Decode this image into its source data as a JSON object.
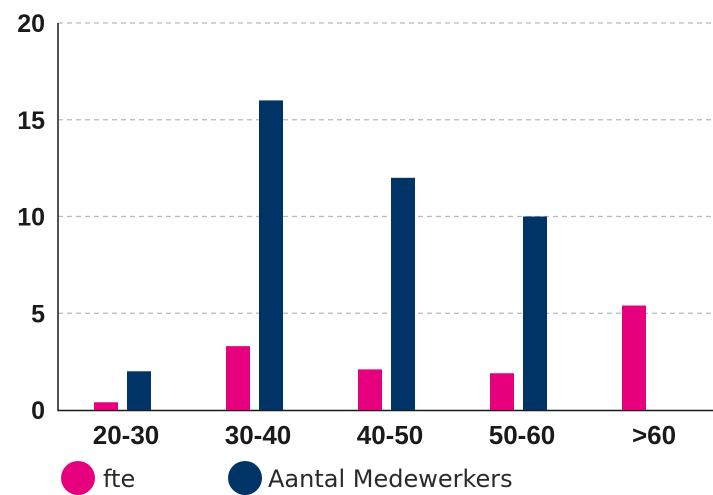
{
  "chart_data": {
    "type": "bar",
    "categories": [
      "20-30",
      "30-40",
      "40-50",
      "50-60",
      ">60"
    ],
    "series": [
      {
        "name": "fte",
        "color": "#e6007e",
        "values": [
          0.4,
          3.3,
          2.1,
          1.9,
          5.4
        ]
      },
      {
        "name": "Aantal Medewerkers",
        "color": "#003366",
        "values": [
          2,
          16,
          12,
          10,
          0
        ]
      }
    ],
    "ylim": [
      0,
      20
    ],
    "yticks": [
      "0",
      "5",
      "10",
      "15",
      "20"
    ],
    "grid": true,
    "legend": "bottom-left"
  },
  "legend": {
    "fte": "fte",
    "aantal": "Aantal Medewerkers"
  }
}
